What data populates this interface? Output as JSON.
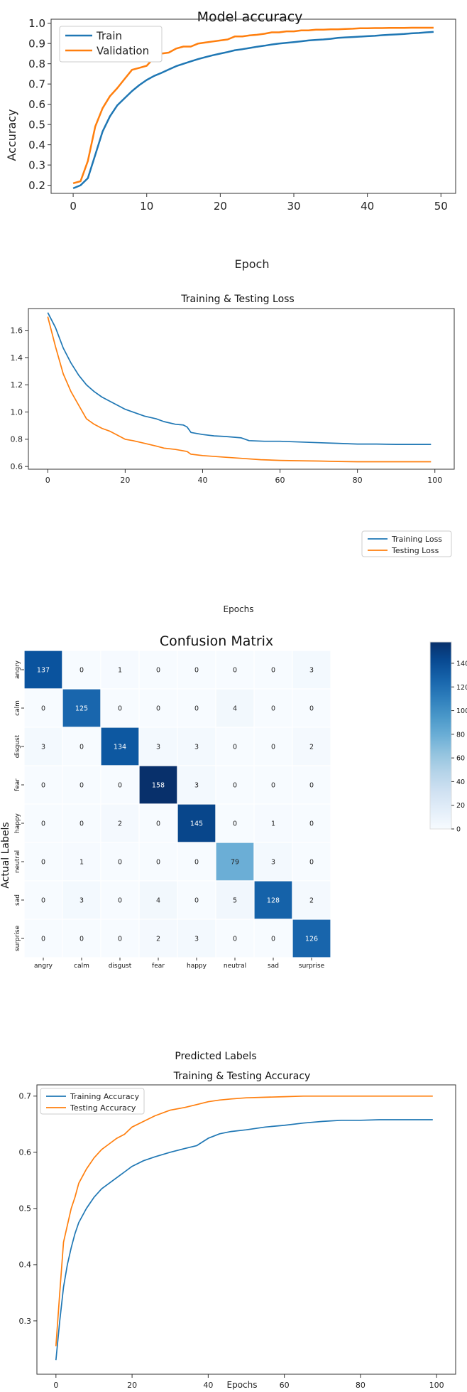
{
  "chart_data": [
    {
      "type": "line",
      "title": "Model accuracy",
      "xlabel": "Epoch",
      "ylabel": "Accuracy",
      "xlim": [
        -3,
        52
      ],
      "ylim": [
        0.16,
        1.02
      ],
      "xticks": [
        "0",
        "10",
        "20",
        "30",
        "40",
        "50"
      ],
      "yticks": [
        "0.2",
        "0.3",
        "0.4",
        "0.5",
        "0.6",
        "0.7",
        "0.8",
        "0.9",
        "1.0"
      ],
      "legend": "upper-left",
      "grid": false,
      "colors": {
        "Train": "#1f77b4",
        "Validation": "#ff7f0e"
      },
      "series": [
        {
          "name": "Train",
          "color": "#1f77b4",
          "x_start": 0,
          "values": [
            0.185,
            0.2,
            0.235,
            0.35,
            0.465,
            0.54,
            0.595,
            0.63,
            0.665,
            0.695,
            0.72,
            0.74,
            0.755,
            0.772,
            0.788,
            0.8,
            0.812,
            0.823,
            0.833,
            0.842,
            0.85,
            0.858,
            0.867,
            0.872,
            0.878,
            0.884,
            0.889,
            0.895,
            0.9,
            0.903,
            0.907,
            0.911,
            0.915,
            0.918,
            0.92,
            0.923,
            0.928,
            0.93,
            0.932,
            0.934,
            0.936,
            0.938,
            0.941,
            0.943,
            0.945,
            0.947,
            0.95,
            0.952,
            0.955,
            0.957
          ]
        },
        {
          "name": "Validation",
          "color": "#ff7f0e",
          "x_start": 0,
          "values": [
            0.21,
            0.22,
            0.32,
            0.49,
            0.58,
            0.64,
            0.68,
            0.725,
            0.77,
            0.78,
            0.79,
            0.83,
            0.85,
            0.855,
            0.875,
            0.885,
            0.885,
            0.9,
            0.905,
            0.91,
            0.915,
            0.92,
            0.935,
            0.935,
            0.94,
            0.943,
            0.948,
            0.955,
            0.955,
            0.96,
            0.96,
            0.965,
            0.965,
            0.968,
            0.968,
            0.97,
            0.97,
            0.972,
            0.973,
            0.975,
            0.975,
            0.976,
            0.976,
            0.977,
            0.977,
            0.977,
            0.978,
            0.978,
            0.978,
            0.978
          ]
        }
      ]
    },
    {
      "type": "line",
      "title": "Training & Testing Loss",
      "xlabel": "Epochs",
      "ylabel": "",
      "xlim": [
        -5,
        105
      ],
      "ylim": [
        0.58,
        1.76
      ],
      "xticks": [
        "0",
        "20",
        "40",
        "60",
        "80",
        "100"
      ],
      "yticks": [
        "0.6",
        "0.8",
        "1.0",
        "1.2",
        "1.4",
        "1.6"
      ],
      "legend": "upper-right",
      "grid": false,
      "colors": {
        "Training Loss": "#1f77b4",
        "Testing Loss": "#ff7f0e"
      },
      "series": [
        {
          "name": "Training Loss",
          "color": "#1f77b4",
          "points": [
            [
              0,
              1.73
            ],
            [
              2,
              1.62
            ],
            [
              4,
              1.47
            ],
            [
              6,
              1.36
            ],
            [
              8,
              1.27
            ],
            [
              10,
              1.2
            ],
            [
              12,
              1.15
            ],
            [
              14,
              1.11
            ],
            [
              16,
              1.08
            ],
            [
              18,
              1.05
            ],
            [
              20,
              1.02
            ],
            [
              22,
              1.0
            ],
            [
              25,
              0.97
            ],
            [
              28,
              0.95
            ],
            [
              30,
              0.93
            ],
            [
              33,
              0.91
            ],
            [
              35,
              0.905
            ],
            [
              36,
              0.89
            ],
            [
              37,
              0.85
            ],
            [
              40,
              0.835
            ],
            [
              43,
              0.825
            ],
            [
              46,
              0.82
            ],
            [
              50,
              0.81
            ],
            [
              52,
              0.79
            ],
            [
              56,
              0.785
            ],
            [
              60,
              0.785
            ],
            [
              65,
              0.78
            ],
            [
              70,
              0.775
            ],
            [
              75,
              0.77
            ],
            [
              80,
              0.765
            ],
            [
              85,
              0.765
            ],
            [
              90,
              0.762
            ],
            [
              95,
              0.762
            ],
            [
              99,
              0.762
            ]
          ]
        },
        {
          "name": "Testing Loss",
          "color": "#ff7f0e",
          "points": [
            [
              0,
              1.7
            ],
            [
              2,
              1.48
            ],
            [
              4,
              1.28
            ],
            [
              6,
              1.15
            ],
            [
              8,
              1.05
            ],
            [
              10,
              0.95
            ],
            [
              12,
              0.91
            ],
            [
              14,
              0.88
            ],
            [
              16,
              0.86
            ],
            [
              18,
              0.83
            ],
            [
              20,
              0.8
            ],
            [
              22,
              0.79
            ],
            [
              25,
              0.77
            ],
            [
              28,
              0.75
            ],
            [
              30,
              0.735
            ],
            [
              33,
              0.725
            ],
            [
              36,
              0.71
            ],
            [
              37,
              0.69
            ],
            [
              40,
              0.68
            ],
            [
              45,
              0.67
            ],
            [
              50,
              0.66
            ],
            [
              55,
              0.65
            ],
            [
              60,
              0.645
            ],
            [
              65,
              0.642
            ],
            [
              70,
              0.64
            ],
            [
              75,
              0.637
            ],
            [
              80,
              0.635
            ],
            [
              90,
              0.635
            ],
            [
              99,
              0.635
            ]
          ]
        }
      ]
    },
    {
      "type": "heatmap",
      "title": "Confusion Matrix",
      "xlabel": "Predicted Labels",
      "ylabel": "Actual Labels",
      "x_categories": [
        "angry",
        "calm",
        "disgust",
        "fear",
        "happy",
        "neutral",
        "sad",
        "surprise"
      ],
      "y_categories": [
        "angry",
        "calm",
        "disgust",
        "fear",
        "happy",
        "neutral",
        "sad",
        "surprise"
      ],
      "values": [
        [
          137,
          0,
          1,
          0,
          0,
          0,
          0,
          3
        ],
        [
          0,
          125,
          0,
          0,
          0,
          4,
          0,
          0
        ],
        [
          3,
          0,
          134,
          3,
          3,
          0,
          0,
          2
        ],
        [
          0,
          0,
          0,
          158,
          3,
          0,
          0,
          0
        ],
        [
          0,
          0,
          2,
          0,
          145,
          0,
          1,
          0
        ],
        [
          0,
          1,
          0,
          0,
          0,
          79,
          3,
          0
        ],
        [
          0,
          3,
          0,
          4,
          0,
          5,
          128,
          2
        ],
        [
          0,
          0,
          0,
          2,
          3,
          0,
          0,
          126
        ]
      ],
      "colorscale": "Blues",
      "vmin": 0,
      "vmax": 158,
      "colorbar_ticks": [
        "0",
        "20",
        "40",
        "60",
        "80",
        "100",
        "120",
        "140"
      ]
    },
    {
      "type": "line",
      "title": "Training & Testing Accuracy",
      "xlabel": "Epochs",
      "ylabel": "",
      "xlim": [
        -5,
        105
      ],
      "ylim": [
        0.205,
        0.72
      ],
      "xticks": [
        "0",
        "20",
        "40",
        "60",
        "80",
        "100"
      ],
      "yticks": [
        "0.3",
        "0.4",
        "0.5",
        "0.6",
        "0.7"
      ],
      "legend": "upper-left",
      "grid": false,
      "colors": {
        "Training Accuracy": "#1f77b4",
        "Testing Accuracy": "#ff7f0e"
      },
      "series": [
        {
          "name": "Training Accuracy",
          "color": "#1f77b4",
          "points": [
            [
              0,
              0.23
            ],
            [
              1,
              0.3
            ],
            [
              2,
              0.36
            ],
            [
              3,
              0.4
            ],
            [
              4,
              0.43
            ],
            [
              5,
              0.455
            ],
            [
              6,
              0.475
            ],
            [
              8,
              0.5
            ],
            [
              10,
              0.52
            ],
            [
              12,
              0.535
            ],
            [
              14,
              0.545
            ],
            [
              16,
              0.555
            ],
            [
              18,
              0.565
            ],
            [
              20,
              0.575
            ],
            [
              23,
              0.585
            ],
            [
              26,
              0.592
            ],
            [
              30,
              0.6
            ],
            [
              34,
              0.607
            ],
            [
              37,
              0.612
            ],
            [
              40,
              0.625
            ],
            [
              43,
              0.633
            ],
            [
              46,
              0.637
            ],
            [
              50,
              0.64
            ],
            [
              55,
              0.645
            ],
            [
              60,
              0.648
            ],
            [
              65,
              0.652
            ],
            [
              70,
              0.655
            ],
            [
              75,
              0.657
            ],
            [
              80,
              0.657
            ],
            [
              85,
              0.658
            ],
            [
              90,
              0.658
            ],
            [
              95,
              0.658
            ],
            [
              99,
              0.658
            ]
          ]
        },
        {
          "name": "Testing Accuracy",
          "color": "#ff7f0e",
          "points": [
            [
              0,
              0.255
            ],
            [
              1,
              0.35
            ],
            [
              2,
              0.44
            ],
            [
              3,
              0.47
            ],
            [
              4,
              0.5
            ],
            [
              5,
              0.52
            ],
            [
              6,
              0.545
            ],
            [
              8,
              0.57
            ],
            [
              10,
              0.59
            ],
            [
              12,
              0.605
            ],
            [
              14,
              0.615
            ],
            [
              16,
              0.625
            ],
            [
              18,
              0.632
            ],
            [
              20,
              0.645
            ],
            [
              23,
              0.655
            ],
            [
              26,
              0.665
            ],
            [
              30,
              0.675
            ],
            [
              34,
              0.68
            ],
            [
              37,
              0.685
            ],
            [
              40,
              0.69
            ],
            [
              43,
              0.693
            ],
            [
              46,
              0.695
            ],
            [
              50,
              0.697
            ],
            [
              55,
              0.698
            ],
            [
              60,
              0.699
            ],
            [
              65,
              0.7
            ],
            [
              70,
              0.7
            ],
            [
              75,
              0.7
            ],
            [
              80,
              0.7
            ],
            [
              85,
              0.7
            ],
            [
              90,
              0.7
            ],
            [
              95,
              0.7
            ],
            [
              99,
              0.7
            ]
          ]
        }
      ]
    }
  ]
}
